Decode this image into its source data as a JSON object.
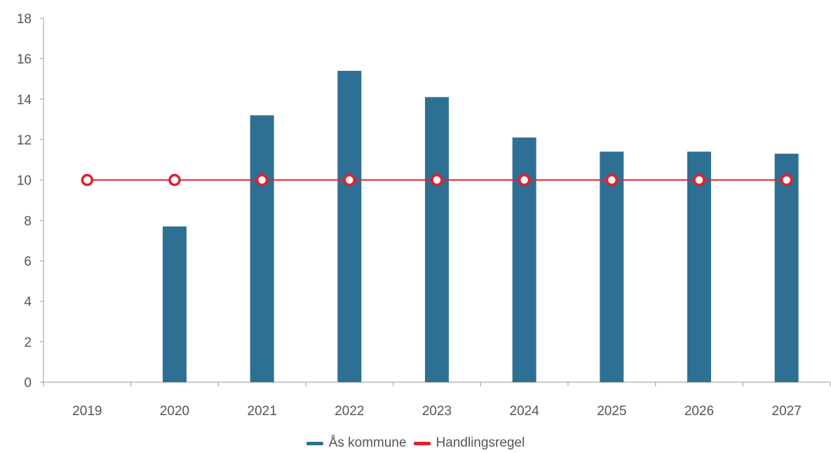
{
  "chart_data": {
    "type": "bar",
    "categories": [
      "2019",
      "2020",
      "2021",
      "2022",
      "2023",
      "2024",
      "2025",
      "2026",
      "2027"
    ],
    "series": [
      {
        "name": "Ås kommune",
        "type": "bar",
        "color": "#2e7093",
        "values": [
          0,
          7.7,
          13.2,
          15.4,
          14.1,
          12.1,
          11.4,
          11.4,
          11.3
        ]
      },
      {
        "name": "Handlingsregel",
        "type": "line",
        "color": "#e3212c",
        "values": [
          10,
          10,
          10,
          10,
          10,
          10,
          10,
          10,
          10
        ]
      }
    ],
    "ylim": [
      0,
      18
    ],
    "yticks": [
      "0",
      "2",
      "4",
      "6",
      "8",
      "10",
      "12",
      "14",
      "16",
      "18"
    ],
    "legend": "bottom-center",
    "grid": false
  }
}
